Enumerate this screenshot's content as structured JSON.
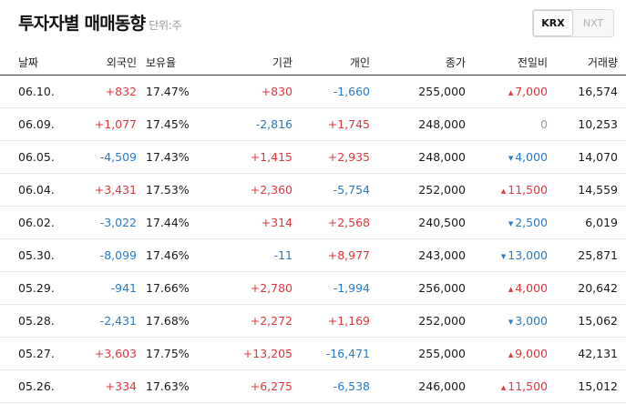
{
  "header": {
    "title": "투자자별 매매동향",
    "unit": "단위:주"
  },
  "tabs": [
    {
      "label": "KRX",
      "active": true
    },
    {
      "label": "NXT",
      "active": false
    }
  ],
  "columns": [
    "날짜",
    "외국인",
    "보유율",
    "기관",
    "개인",
    "종가",
    "전일비",
    "거래량"
  ],
  "rows": [
    {
      "date": "06.10.",
      "foreign": "+832",
      "foreign_dir": "up",
      "hold": "17.47%",
      "inst": "+830",
      "inst_dir": "up",
      "indiv": "-1,660",
      "indiv_dir": "down",
      "close": "255,000",
      "change": "7,000",
      "change_dir": "up",
      "volume": "16,574"
    },
    {
      "date": "06.09.",
      "foreign": "+1,077",
      "foreign_dir": "up",
      "hold": "17.45%",
      "inst": "-2,816",
      "inst_dir": "down",
      "indiv": "+1,745",
      "indiv_dir": "up",
      "close": "248,000",
      "change": "0",
      "change_dir": "flat",
      "volume": "10,253"
    },
    {
      "date": "06.05.",
      "foreign": "-4,509",
      "foreign_dir": "down",
      "hold": "17.43%",
      "inst": "+1,415",
      "inst_dir": "up",
      "indiv": "+2,935",
      "indiv_dir": "up",
      "close": "248,000",
      "change": "4,000",
      "change_dir": "down",
      "volume": "14,070"
    },
    {
      "date": "06.04.",
      "foreign": "+3,431",
      "foreign_dir": "up",
      "hold": "17.53%",
      "inst": "+2,360",
      "inst_dir": "up",
      "indiv": "-5,754",
      "indiv_dir": "down",
      "close": "252,000",
      "change": "11,500",
      "change_dir": "up",
      "volume": "14,559"
    },
    {
      "date": "06.02.",
      "foreign": "-3,022",
      "foreign_dir": "down",
      "hold": "17.44%",
      "inst": "+314",
      "inst_dir": "up",
      "indiv": "+2,568",
      "indiv_dir": "up",
      "close": "240,500",
      "change": "2,500",
      "change_dir": "down",
      "volume": "6,019"
    },
    {
      "date": "05.30.",
      "foreign": "-8,099",
      "foreign_dir": "down",
      "hold": "17.46%",
      "inst": "-11",
      "inst_dir": "down",
      "indiv": "+8,977",
      "indiv_dir": "up",
      "close": "243,000",
      "change": "13,000",
      "change_dir": "down",
      "volume": "25,871"
    },
    {
      "date": "05.29.",
      "foreign": "-941",
      "foreign_dir": "down",
      "hold": "17.66%",
      "inst": "+2,780",
      "inst_dir": "up",
      "indiv": "-1,994",
      "indiv_dir": "down",
      "close": "256,000",
      "change": "4,000",
      "change_dir": "up",
      "volume": "20,642"
    },
    {
      "date": "05.28.",
      "foreign": "-2,431",
      "foreign_dir": "down",
      "hold": "17.68%",
      "inst": "+2,272",
      "inst_dir": "up",
      "indiv": "+1,169",
      "indiv_dir": "up",
      "close": "252,000",
      "change": "3,000",
      "change_dir": "down",
      "volume": "15,062"
    },
    {
      "date": "05.27.",
      "foreign": "+3,603",
      "foreign_dir": "up",
      "hold": "17.75%",
      "inst": "+13,205",
      "inst_dir": "up",
      "indiv": "-16,471",
      "indiv_dir": "down",
      "close": "255,000",
      "change": "9,000",
      "change_dir": "up",
      "volume": "42,131"
    },
    {
      "date": "05.26.",
      "foreign": "+334",
      "foreign_dir": "up",
      "hold": "17.63%",
      "inst": "+6,275",
      "inst_dir": "up",
      "indiv": "-6,538",
      "indiv_dir": "down",
      "close": "246,000",
      "change": "11,500",
      "change_dir": "up",
      "volume": "15,012"
    }
  ],
  "colors": {
    "up": "#e0383e",
    "down": "#2a7bc7",
    "flat": "#9a9a9a"
  },
  "icons": {
    "up": "triangle-up-icon",
    "down": "triangle-down-icon"
  }
}
